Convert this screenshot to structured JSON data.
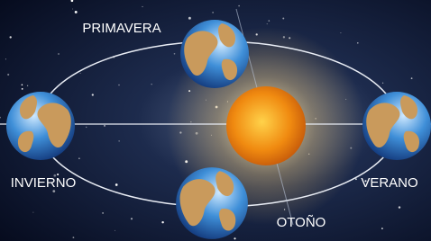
{
  "seasons": [
    {
      "label": "PRIMAVERA"
    },
    {
      "label": "INVIERNO"
    },
    {
      "label": "VERANO"
    },
    {
      "label": "OTOÑO"
    }
  ]
}
